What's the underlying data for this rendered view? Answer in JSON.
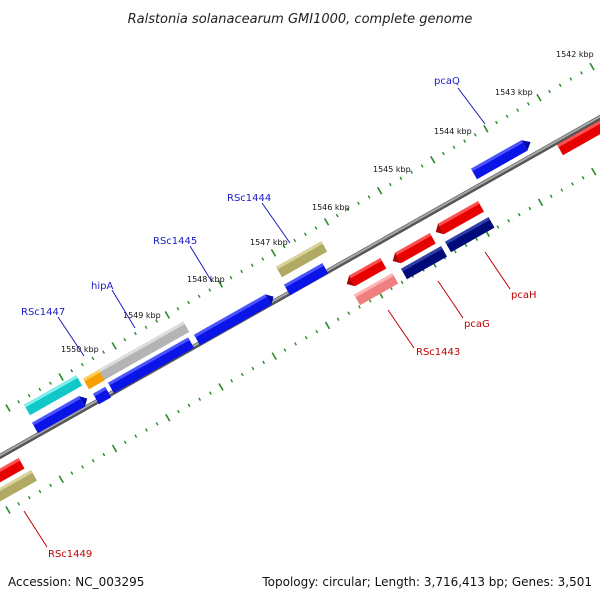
{
  "title": "Ralstonia solanacearum GMI1000, complete genome",
  "footer": {
    "accession": "Accession: NC_003295",
    "summary": "Topology: circular; Length: 3,716,413 bp; Genes: 3,501"
  },
  "ticks": [
    "1542 kbp",
    "1543 kbp",
    "1544 kbp",
    "1545 kbp",
    "1546 kbp",
    "1547 kbp",
    "1548 kbp",
    "1549 kbp",
    "1550 kbp"
  ],
  "forward_labels": [
    "pcaQ",
    "RSc1444",
    "RSc1445",
    "hipA",
    "RSc1447"
  ],
  "reverse_labels": [
    "pcaH",
    "pcaG",
    "RSc1443",
    "RSc1449"
  ],
  "colors": {
    "blue": "#0a14e6",
    "navy": "#000a78",
    "red": "#e60000",
    "pink": "#f08080",
    "olive": "#b0aa64",
    "gray": "#b4b4b4",
    "cyan": "#10c8c8",
    "orange": "#f5a000",
    "backbone": "#808080",
    "tick": "#2a8a2a"
  }
}
